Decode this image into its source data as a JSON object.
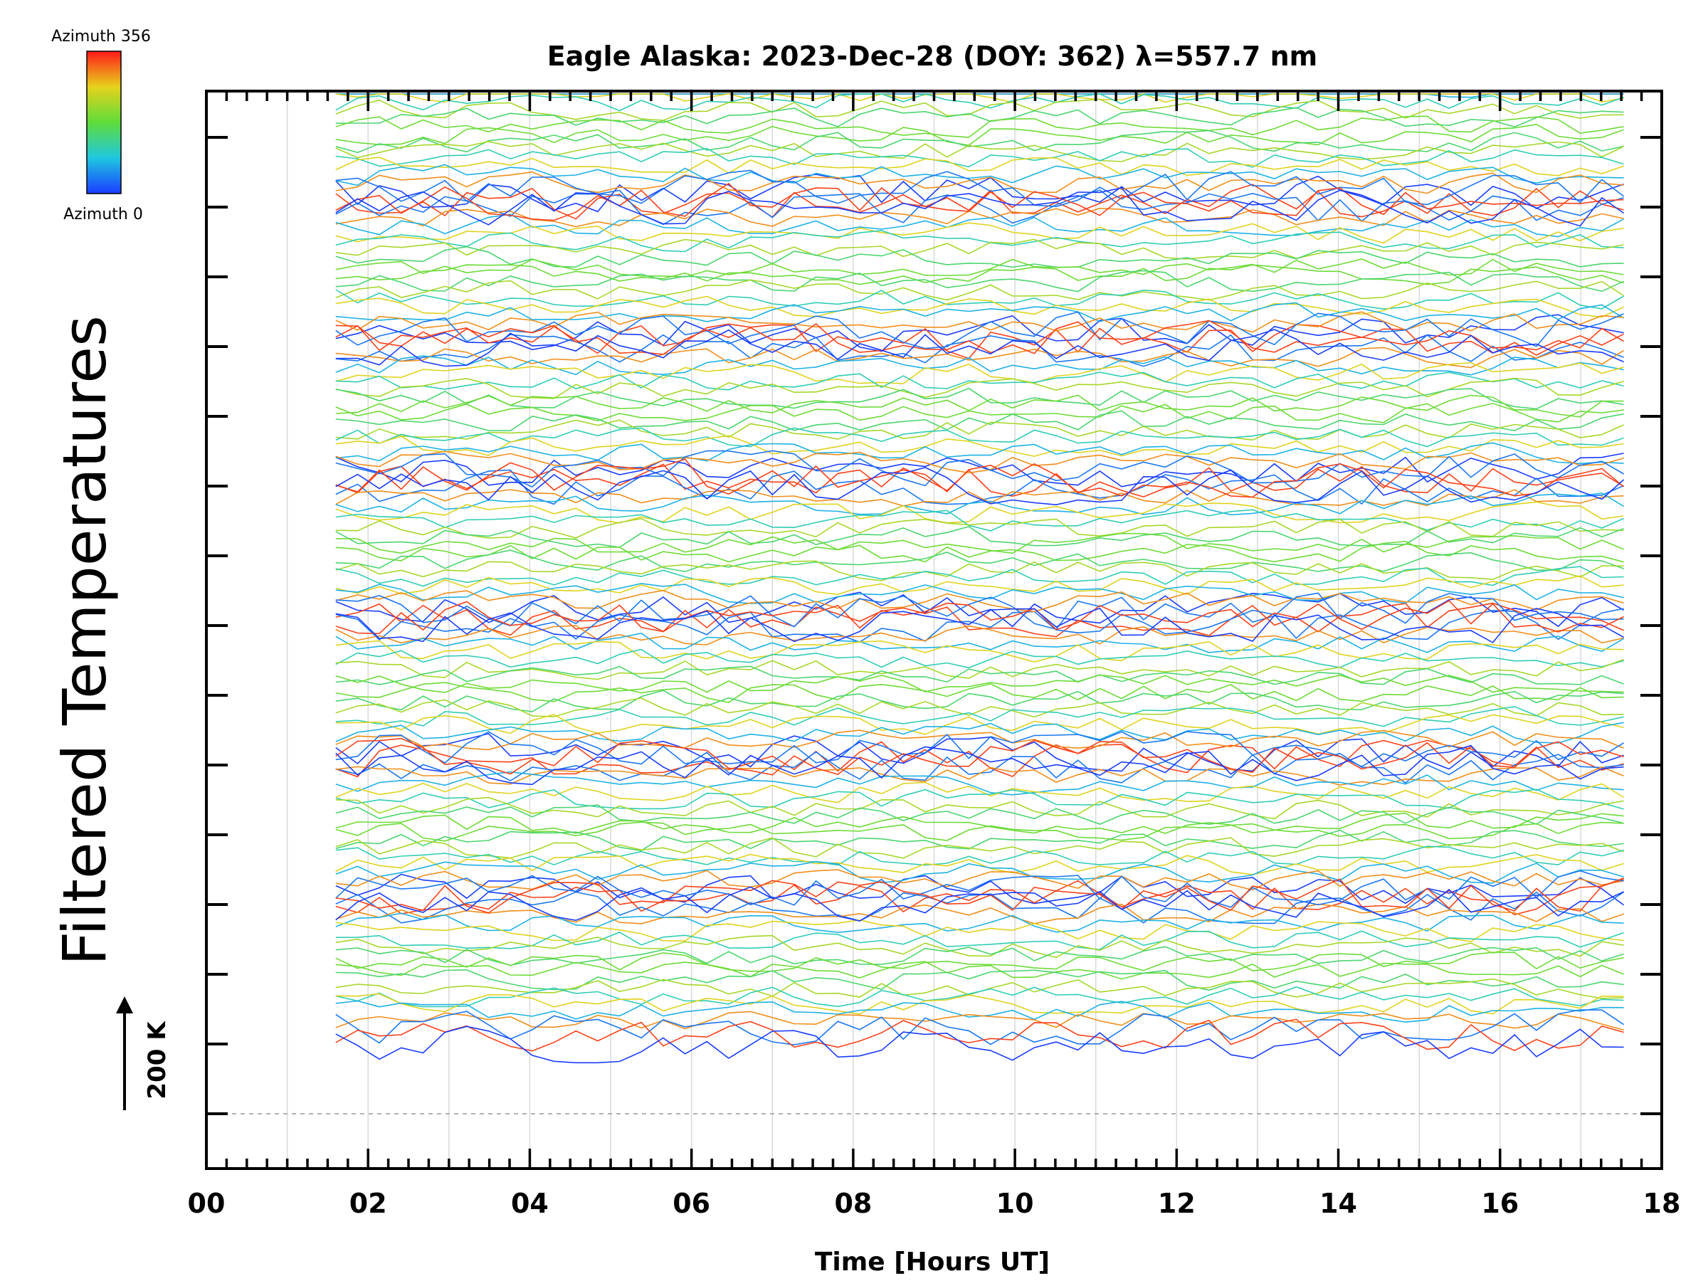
{
  "chart_data": {
    "type": "line",
    "title": "Eagle Alaska: 2023-Dec-28 (DOY: 362) λ=557.7 nm",
    "xlabel": "Time [Hours UT]",
    "ylabel": "Filtered Temperatures",
    "xlim": [
      0,
      18
    ],
    "x_ticks": [
      "00",
      "02",
      "04",
      "06",
      "08",
      "10",
      "12",
      "14",
      "16",
      "18"
    ],
    "y_grid_major_count": 15,
    "scale_bar": {
      "label": "200 K",
      "kelvin": 200
    },
    "colorbar": {
      "top_label": "Azimuth 356",
      "bottom_label": "Azimuth 0",
      "min": 0,
      "max": 356
    },
    "time_start": 1.6,
    "time_end": 17.75,
    "time_step": 0.27,
    "stacks": [
      {
        "name": "stack-1",
        "baseline": 1.0
      },
      {
        "name": "stack-2",
        "baseline": 2.0
      },
      {
        "name": "stack-3",
        "baseline": 3.0
      },
      {
        "name": "stack-4",
        "baseline": 4.0
      },
      {
        "name": "stack-5",
        "baseline": 5.0
      },
      {
        "name": "stack-6",
        "baseline": 6.0
      },
      {
        "name": "stack-7",
        "baseline": 7.0
      }
    ],
    "series_per_stack": 20
  }
}
